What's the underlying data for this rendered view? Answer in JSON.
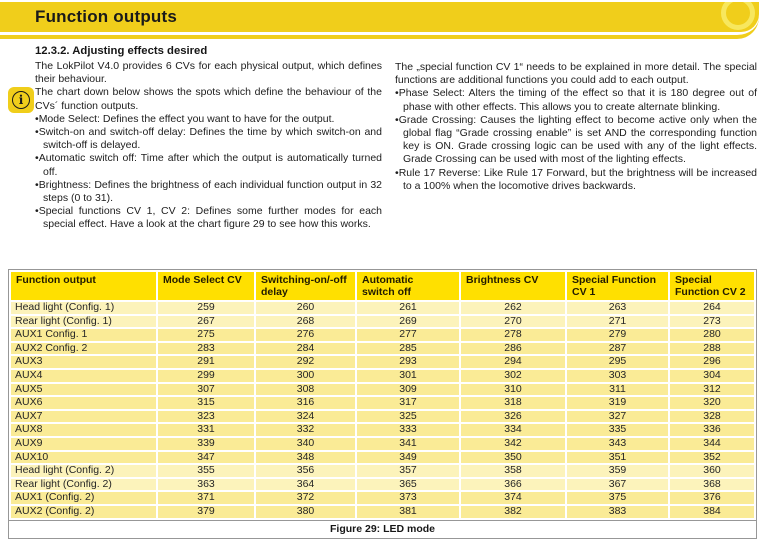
{
  "header": {
    "title": "Function outputs"
  },
  "icons": {
    "info_glyph": "i"
  },
  "left_column": {
    "heading": "12.3.2. Adjusting effects desired",
    "para1": "The LokPilot V4.0 provides 6 CVs for each physical output, which defines their behaviour.",
    "para2": "The chart down below shows the spots which define the behaviour of the CVs´ function outputs.",
    "bullets": [
      "Mode Select: Defines the effect you want to have for the output.",
      "Switch-on and switch-off delay: Defines the time by which switch-on and switch-off is delayed.",
      "Automatic switch off: Time after which the output is automatically turned off.",
      "Brightness: Defines the brightness of each individual function output in 32 steps (0 to 31).",
      "Special functions CV 1, CV 2: Defines some further modes for each special effect. Have a look at the chart figure 29 to see how this works."
    ]
  },
  "right_column": {
    "para1": "The „special function CV 1“ needs to be explained in more detail. The special functions are additional functions you could add to each output.",
    "bullets": [
      "Phase Select: Alters the timing of the effect so that it is 180 degree out of phase with other effects. This allows you to create alternate blinking.",
      "Grade Crossing: Causes the lighting effect to become active only when the global flag “Grade crossing enable” is set AND the corresponding function key is ON. Grade crossing logic can be used with any of the light effects. Grade Crossing can be used with most of the lighting effects.",
      "Rule 17 Reverse: Like Rule 17 Forward, but the brightness will be increased to a 100% when the locomotive drives backwards."
    ]
  },
  "table": {
    "headers": [
      "Function output",
      "Mode Select CV",
      "Switching-on/-off delay",
      "Automatic switch off",
      "Brightness CV",
      "Special Function CV 1",
      "Special Function CV 2"
    ],
    "rows": [
      {
        "label": "Head light (Config. 1)",
        "values": [
          259,
          260,
          261,
          262,
          263,
          264
        ],
        "shade": "light"
      },
      {
        "label": "Rear light (Config. 1)",
        "values": [
          267,
          268,
          269,
          270,
          271,
          273
        ],
        "shade": "light"
      },
      {
        "label": "AUX1 Config. 1",
        "values": [
          275,
          276,
          277,
          278,
          279,
          280
        ],
        "shade": "dark"
      },
      {
        "label": "AUX2 Config. 2",
        "values": [
          283,
          284,
          285,
          286,
          287,
          288
        ],
        "shade": "dark"
      },
      {
        "label": "AUX3",
        "values": [
          291,
          292,
          293,
          294,
          295,
          296
        ],
        "shade": "dark"
      },
      {
        "label": "AUX4",
        "values": [
          299,
          300,
          301,
          302,
          303,
          304
        ],
        "shade": "dark"
      },
      {
        "label": "AUX5",
        "values": [
          307,
          308,
          309,
          310,
          311,
          312
        ],
        "shade": "dark"
      },
      {
        "label": "AUX6",
        "values": [
          315,
          316,
          317,
          318,
          319,
          320
        ],
        "shade": "dark"
      },
      {
        "label": "AUX7",
        "values": [
          323,
          324,
          325,
          326,
          327,
          328
        ],
        "shade": "dark"
      },
      {
        "label": "AUX8",
        "values": [
          331,
          332,
          333,
          334,
          335,
          336
        ],
        "shade": "dark"
      },
      {
        "label": "AUX9",
        "values": [
          339,
          340,
          341,
          342,
          343,
          344
        ],
        "shade": "dark"
      },
      {
        "label": "AUX10",
        "values": [
          347,
          348,
          349,
          350,
          351,
          352
        ],
        "shade": "dark"
      },
      {
        "label": "Head light (Config. 2)",
        "values": [
          355,
          356,
          357,
          358,
          359,
          360
        ],
        "shade": "light"
      },
      {
        "label": "Rear light (Config. 2)",
        "values": [
          363,
          364,
          365,
          366,
          367,
          368
        ],
        "shade": "light"
      },
      {
        "label": "AUX1 (Config. 2)",
        "values": [
          371,
          372,
          373,
          374,
          375,
          376
        ],
        "shade": "dark"
      },
      {
        "label": "AUX2 (Config. 2)",
        "values": [
          379,
          380,
          381,
          382,
          383,
          384
        ],
        "shade": "dark"
      }
    ],
    "caption": "Figure 29: LED mode"
  },
  "colors": {
    "band_yellow": "#F0CE1B",
    "band_ring": "#F7E75E",
    "table_header_yellow": "#FFE000",
    "row_light": "#FCF3BB",
    "row_dark": "#FAEB96",
    "grid_grey": "#979797"
  }
}
